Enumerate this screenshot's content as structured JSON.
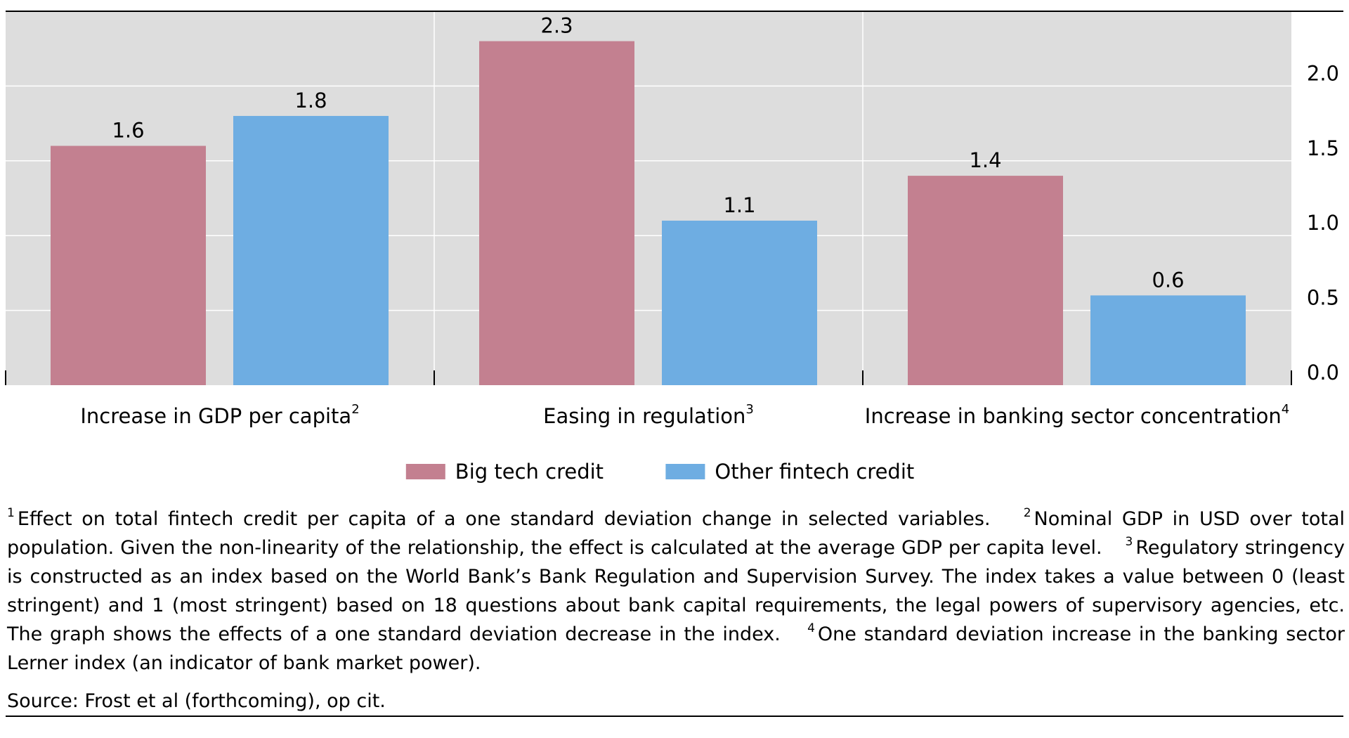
{
  "chart_data": {
    "type": "bar",
    "categories": [
      {
        "label": "Increase in GDP per capita",
        "note": "2"
      },
      {
        "label": "Easing in regulation",
        "note": "3"
      },
      {
        "label": "Increase in banking sector concentration",
        "note": "4"
      }
    ],
    "series": [
      {
        "name": "Big tech credit",
        "color": "#c38090",
        "values": [
          1.6,
          2.3,
          1.4
        ],
        "labels": [
          "1.6",
          "2.3",
          "1.4"
        ]
      },
      {
        "name": "Other fintech credit",
        "color": "#6eade2",
        "values": [
          1.8,
          1.1,
          0.6
        ],
        "labels": [
          "1.8",
          "1.1",
          "0.6"
        ]
      }
    ],
    "ylim": [
      0,
      2.5
    ],
    "yticks": [
      0,
      0.5,
      1,
      1.5,
      2
    ],
    "ytick_labels": [
      "0.0",
      "0.5",
      "1.0",
      "1.5",
      "2.0"
    ],
    "yaxis_side": "right",
    "grid": true,
    "background_color": "#dddddd",
    "legend_position": "bottom-center"
  },
  "footnotes": [
    {
      "num": "1",
      "text": "Effect on total fintech credit per capita of a one standard deviation change in selected variables."
    },
    {
      "num": "2",
      "text": "Nominal GDP in USD over total population. Given the non-linearity of the relationship, the effect is calculated at the average GDP per capita level."
    },
    {
      "num": "3",
      "text": "Regulatory stringency is constructed as an index based on the World Bank’s Bank Regulation and Supervision Survey. The index takes a value between 0 (least stringent) and 1 (most stringent) based on 18 questions about bank capital requirements, the legal powers of supervisory agencies, etc. The graph shows the effects of a one standard deviation decrease in the index."
    },
    {
      "num": "4",
      "text": "One standard deviation increase in the banking sector Lerner index (an indicator of bank market power)."
    }
  ],
  "source": "Source: Frost et al (forthcoming), op cit."
}
